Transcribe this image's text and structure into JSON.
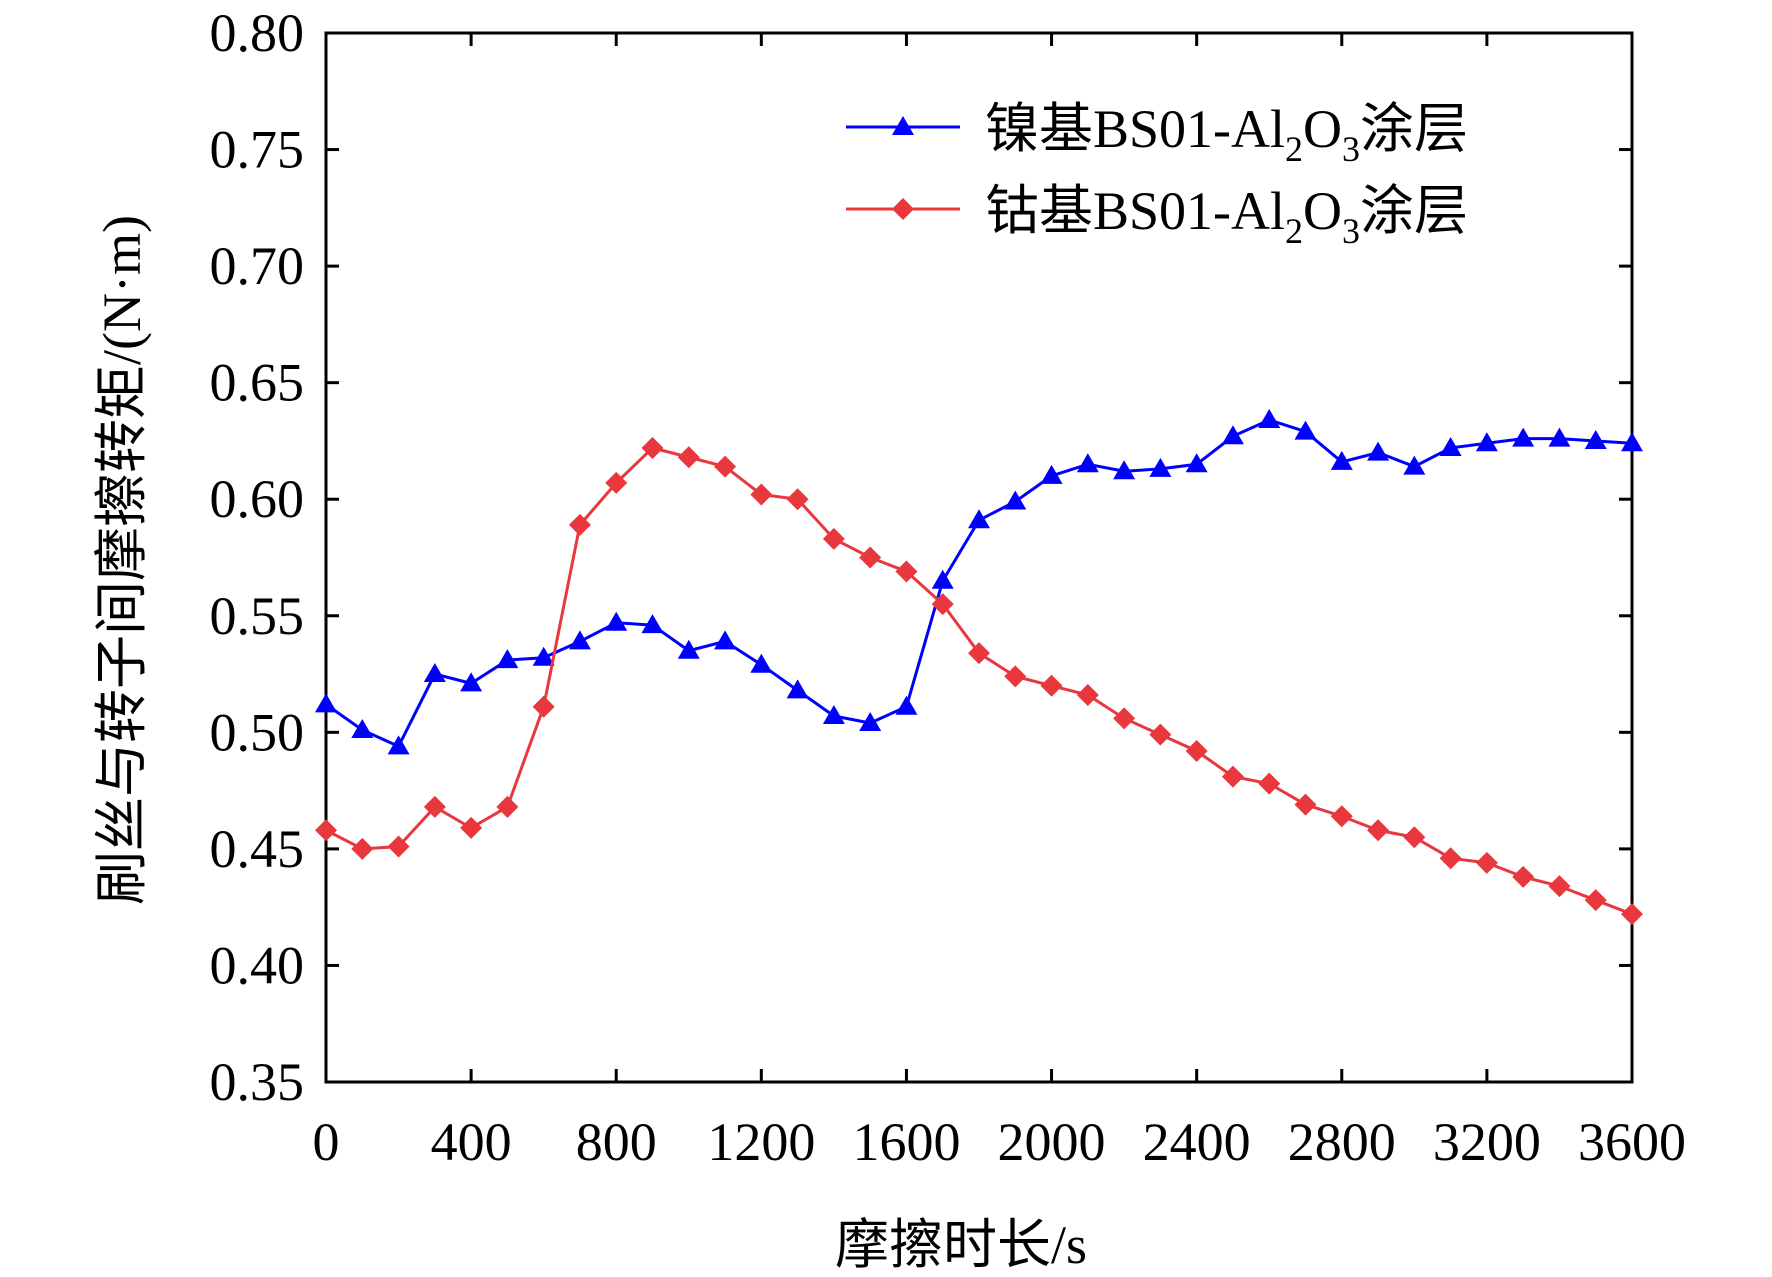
{
  "chart_data": {
    "type": "line",
    "xlabel": "摩擦时长/s",
    "ylabel": "刷丝与转子间摩擦转矩/(N·m)",
    "xlim": [
      0,
      3600
    ],
    "ylim": [
      0.35,
      0.8
    ],
    "xticks": [
      0,
      400,
      800,
      1200,
      1600,
      2000,
      2400,
      2800,
      3200,
      3600
    ],
    "yticks": [
      0.35,
      0.4,
      0.45,
      0.5,
      0.55,
      0.6,
      0.65,
      0.7,
      0.75,
      0.8
    ],
    "xtick_labels": [
      "0",
      "400",
      "800",
      "1200",
      "1600",
      "2000",
      "2400",
      "2800",
      "3200",
      "3600"
    ],
    "ytick_labels": [
      "0.35",
      "0.40",
      "0.45",
      "0.50",
      "0.55",
      "0.60",
      "0.65",
      "0.70",
      "0.75",
      "0.80"
    ],
    "grid": false,
    "legend_position": "top-right",
    "x": [
      0,
      100,
      200,
      300,
      400,
      500,
      600,
      700,
      800,
      900,
      1000,
      1100,
      1200,
      1300,
      1400,
      1500,
      1600,
      1700,
      1800,
      1900,
      2000,
      2100,
      2200,
      2300,
      2400,
      2500,
      2600,
      2700,
      2800,
      2900,
      3000,
      3100,
      3200,
      3300,
      3400,
      3500,
      3600
    ],
    "series": [
      {
        "name_prefix": "镍基BS01-Al",
        "name_sub1": "2",
        "name_mid": "O",
        "name_sub2": "3",
        "name_suffix": "涂层",
        "color": "#0000ff",
        "marker": "triangle",
        "values": [
          0.512,
          0.501,
          0.494,
          0.525,
          0.521,
          0.531,
          0.532,
          0.539,
          0.547,
          0.546,
          0.535,
          0.539,
          0.529,
          0.518,
          0.507,
          0.504,
          0.511,
          0.565,
          0.591,
          0.599,
          0.61,
          0.615,
          0.612,
          0.613,
          0.615,
          0.627,
          0.634,
          0.629,
          0.616,
          0.62,
          0.614,
          0.622,
          0.624,
          0.626,
          0.626,
          0.625,
          0.624
        ]
      },
      {
        "name_prefix": "钴基BS01-Al",
        "name_sub1": "2",
        "name_mid": "O",
        "name_sub2": "3",
        "name_suffix": "涂层",
        "color": "#e8383d",
        "marker": "diamond",
        "values": [
          0.458,
          0.45,
          0.451,
          0.468,
          0.459,
          0.468,
          0.511,
          0.589,
          0.607,
          0.622,
          0.618,
          0.614,
          0.602,
          0.6,
          0.583,
          0.575,
          0.569,
          0.555,
          0.534,
          0.524,
          0.52,
          0.516,
          0.506,
          0.499,
          0.492,
          0.481,
          0.478,
          0.469,
          0.464,
          0.458,
          0.455,
          0.446,
          0.444,
          0.438,
          0.434,
          0.428,
          0.422
        ]
      }
    ]
  }
}
